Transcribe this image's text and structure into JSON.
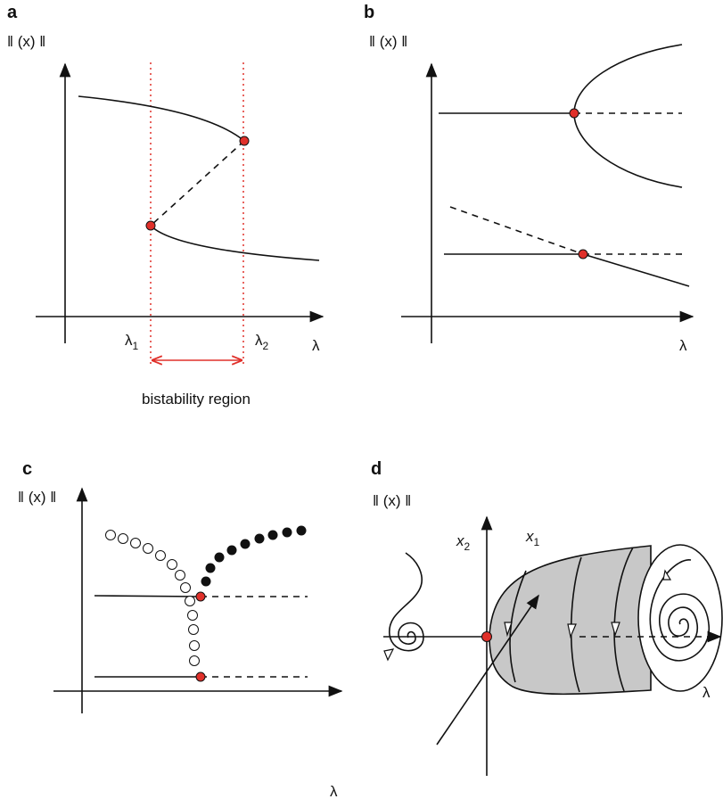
{
  "panels": [
    {
      "letter": "a",
      "y_label": "‖ (x) ‖",
      "x_label": "λ",
      "markers": [
        {
          "symbol": "λ",
          "subscript": "1"
        },
        {
          "symbol": "λ",
          "subscript": "2"
        }
      ],
      "region_label": "bistability region"
    },
    {
      "letter": "b",
      "y_label": "‖ (x) ‖",
      "x_label": "λ"
    },
    {
      "letter": "c",
      "y_label": "‖ (x) ‖",
      "x_label": "λ"
    },
    {
      "letter": "d",
      "y_label": "‖ (x) ‖",
      "x_label": "λ",
      "axis_labels": [
        {
          "symbol": "x",
          "subscript": "2"
        },
        {
          "symbol": "x",
          "subscript": "1"
        }
      ]
    }
  ]
}
